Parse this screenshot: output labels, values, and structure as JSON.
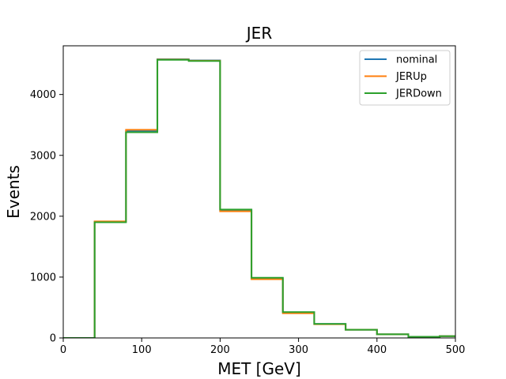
{
  "chart_data": {
    "type": "line",
    "title": "JER",
    "xlabel": "MET [GeV]",
    "ylabel": "Events",
    "xlim": [
      0,
      500
    ],
    "ylim": [
      0,
      4800
    ],
    "x_ticks": [
      0,
      100,
      200,
      300,
      400,
      500
    ],
    "y_ticks": [
      0,
      1000,
      2000,
      3000,
      4000
    ],
    "grid": false,
    "legend_position": "top-right",
    "bin_edges": [
      0,
      40,
      80,
      120,
      160,
      200,
      240,
      280,
      320,
      360,
      400,
      440,
      480,
      520
    ],
    "series": [
      {
        "name": "nominal",
        "color": "#1f77b4",
        "values": [
          0,
          1910,
          3400,
          4580,
          4560,
          2100,
          980,
          420,
          230,
          135,
          60,
          20,
          30
        ]
      },
      {
        "name": "JERUp",
        "color": "#ff7f0e",
        "values": [
          0,
          1915,
          3420,
          4575,
          4555,
          2080,
          965,
          405,
          225,
          135,
          60,
          20,
          30
        ]
      },
      {
        "name": "JERDown",
        "color": "#2ca02c",
        "values": [
          0,
          1900,
          3380,
          4570,
          4550,
          2110,
          990,
          425,
          230,
          135,
          60,
          20,
          30
        ]
      }
    ]
  }
}
